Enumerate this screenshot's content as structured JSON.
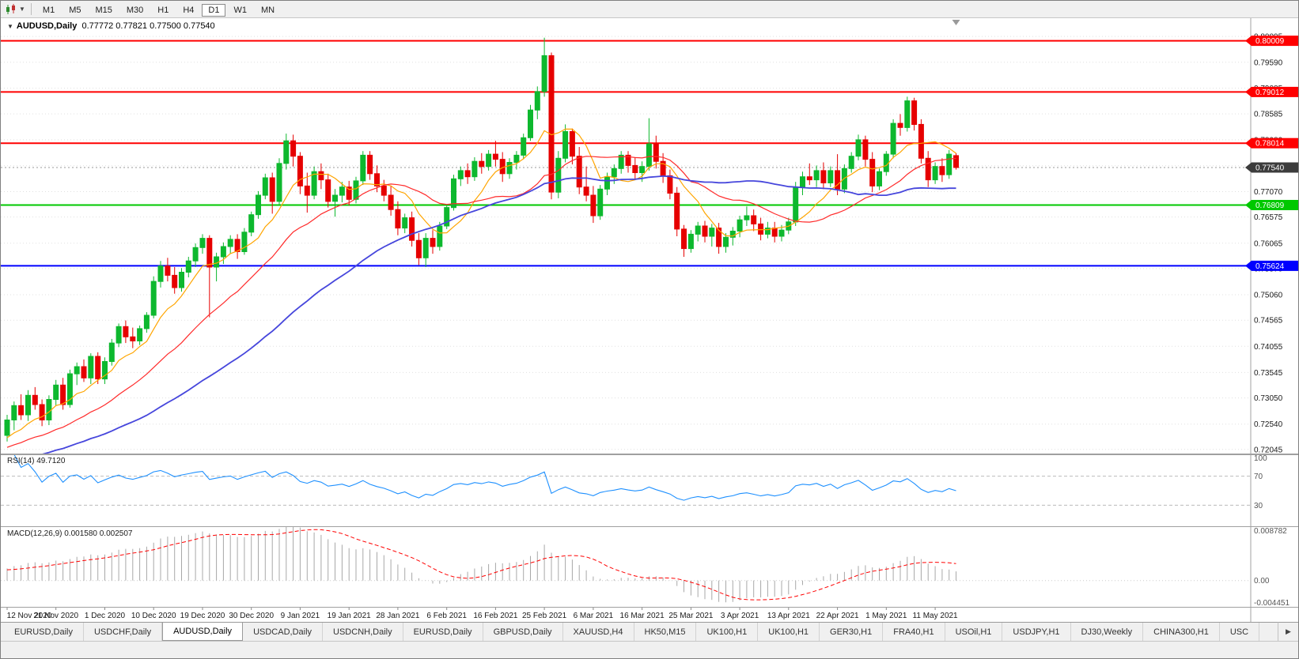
{
  "toolbar": {
    "timeframes": [
      "M1",
      "M5",
      "M15",
      "M30",
      "H1",
      "H4",
      "D1",
      "W1",
      "MN"
    ],
    "active": "D1"
  },
  "main_chart": {
    "collapse_icon": "▼",
    "title_symbol": "AUDUSD,Daily",
    "title_ohlc": "0.77772 0.77821 0.77500 0.77540"
  },
  "chart_data": {
    "type": "candlestick",
    "symbol": "AUDUSD",
    "timeframe": "Daily",
    "price_range": {
      "min": 0.7195,
      "max": 0.8045
    },
    "y_ticks": [
      "0.80095",
      "0.79590",
      "0.79085",
      "0.78585",
      "0.78080",
      "0.77575",
      "0.77070",
      "0.76575",
      "0.76065",
      "0.75570",
      "0.75060",
      "0.74565",
      "0.74055",
      "0.73545",
      "0.73050",
      "0.72540",
      "0.72045"
    ],
    "x_labels": [
      "12 Nov 2020",
      "21 Nov 2020",
      "1 Dec 2020",
      "10 Dec 2020",
      "19 Dec 2020",
      "30 Dec 2020",
      "9 Jan 2021",
      "19 Jan 2021",
      "28 Jan 2021",
      "6 Feb 2021",
      "16 Feb 2021",
      "25 Feb 2021",
      "6 Mar 2021",
      "16 Mar 2021",
      "25 Mar 2021",
      "3 Apr 2021",
      "13 Apr 2021",
      "22 Apr 2021",
      "1 May 2021",
      "11 May 2021"
    ],
    "label_every": 7,
    "candles": [
      [
        0.7232,
        0.7272,
        0.722,
        0.7262
      ],
      [
        0.7262,
        0.7298,
        0.7242,
        0.729
      ],
      [
        0.729,
        0.7312,
        0.7262,
        0.7272
      ],
      [
        0.7272,
        0.732,
        0.726,
        0.731
      ],
      [
        0.731,
        0.7326,
        0.7282,
        0.7292
      ],
      [
        0.7292,
        0.7302,
        0.725,
        0.7262
      ],
      [
        0.7262,
        0.731,
        0.7252,
        0.7302
      ],
      [
        0.7302,
        0.734,
        0.729,
        0.733
      ],
      [
        0.733,
        0.7344,
        0.7282,
        0.7292
      ],
      [
        0.7292,
        0.736,
        0.7286,
        0.7352
      ],
      [
        0.7352,
        0.7374,
        0.733,
        0.7366
      ],
      [
        0.7366,
        0.738,
        0.7336,
        0.7344
      ],
      [
        0.7344,
        0.7392,
        0.7332,
        0.7386
      ],
      [
        0.7386,
        0.7394,
        0.7332,
        0.7342
      ],
      [
        0.7342,
        0.7384,
        0.7332,
        0.7376
      ],
      [
        0.7376,
        0.742,
        0.7368,
        0.7412
      ],
      [
        0.7412,
        0.745,
        0.7404,
        0.7444
      ],
      [
        0.7444,
        0.7456,
        0.7412,
        0.7424
      ],
      [
        0.7424,
        0.7442,
        0.7402,
        0.7416
      ],
      [
        0.7416,
        0.7446,
        0.7408,
        0.744
      ],
      [
        0.744,
        0.7472,
        0.7432,
        0.7466
      ],
      [
        0.7466,
        0.7542,
        0.746,
        0.7532
      ],
      [
        0.7532,
        0.7572,
        0.752,
        0.7562
      ],
      [
        0.7562,
        0.7578,
        0.7532,
        0.7544
      ],
      [
        0.7544,
        0.756,
        0.7508,
        0.752
      ],
      [
        0.752,
        0.7558,
        0.7512,
        0.755
      ],
      [
        0.755,
        0.758,
        0.754,
        0.7572
      ],
      [
        0.7572,
        0.7606,
        0.756,
        0.7598
      ],
      [
        0.7598,
        0.7624,
        0.7586,
        0.7616
      ],
      [
        0.7616,
        0.7622,
        0.7462,
        0.756
      ],
      [
        0.756,
        0.7588,
        0.7532,
        0.758
      ],
      [
        0.758,
        0.7608,
        0.7566,
        0.76
      ],
      [
        0.76,
        0.7622,
        0.7586,
        0.7614
      ],
      [
        0.7614,
        0.7624,
        0.7576,
        0.759
      ],
      [
        0.759,
        0.7636,
        0.7584,
        0.7628
      ],
      [
        0.7628,
        0.7668,
        0.762,
        0.7662
      ],
      [
        0.7662,
        0.7708,
        0.7654,
        0.77
      ],
      [
        0.77,
        0.7742,
        0.7692,
        0.7734
      ],
      [
        0.7734,
        0.7744,
        0.7664,
        0.7688
      ],
      [
        0.7688,
        0.7772,
        0.7682,
        0.7762
      ],
      [
        0.7762,
        0.782,
        0.775,
        0.7806
      ],
      [
        0.7806,
        0.7818,
        0.7756,
        0.7776
      ],
      [
        0.7776,
        0.7784,
        0.7702,
        0.7718
      ],
      [
        0.7718,
        0.7744,
        0.7666,
        0.77
      ],
      [
        0.77,
        0.7756,
        0.7692,
        0.7746
      ],
      [
        0.7746,
        0.7762,
        0.7712,
        0.773
      ],
      [
        0.773,
        0.7742,
        0.7676,
        0.7688
      ],
      [
        0.7688,
        0.7712,
        0.7658,
        0.77
      ],
      [
        0.77,
        0.7726,
        0.7686,
        0.7716
      ],
      [
        0.7716,
        0.7728,
        0.768,
        0.7692
      ],
      [
        0.7692,
        0.7736,
        0.7684,
        0.7728
      ],
      [
        0.7728,
        0.7786,
        0.772,
        0.7778
      ],
      [
        0.7778,
        0.7786,
        0.773,
        0.7742
      ],
      [
        0.7742,
        0.7758,
        0.7706,
        0.7718
      ],
      [
        0.7718,
        0.773,
        0.7688,
        0.77
      ],
      [
        0.77,
        0.7718,
        0.766,
        0.7672
      ],
      [
        0.7672,
        0.7688,
        0.7622,
        0.7636
      ],
      [
        0.7636,
        0.7664,
        0.7626,
        0.7656
      ],
      [
        0.7656,
        0.7668,
        0.76,
        0.7612
      ],
      [
        0.7612,
        0.7626,
        0.7564,
        0.7578
      ],
      [
        0.7578,
        0.7626,
        0.756,
        0.7616
      ],
      [
        0.7616,
        0.7632,
        0.7586,
        0.76
      ],
      [
        0.76,
        0.7648,
        0.7592,
        0.764
      ],
      [
        0.764,
        0.7682,
        0.7634,
        0.7676
      ],
      [
        0.7676,
        0.774,
        0.767,
        0.7732
      ],
      [
        0.7732,
        0.7756,
        0.7718,
        0.7748
      ],
      [
        0.7748,
        0.7762,
        0.7722,
        0.7736
      ],
      [
        0.7736,
        0.7774,
        0.7728,
        0.7766
      ],
      [
        0.7766,
        0.7782,
        0.7742,
        0.7756
      ],
      [
        0.7756,
        0.7788,
        0.7748,
        0.778
      ],
      [
        0.778,
        0.7806,
        0.7756,
        0.777
      ],
      [
        0.777,
        0.7784,
        0.7726,
        0.7742
      ],
      [
        0.7742,
        0.7772,
        0.7732,
        0.7764
      ],
      [
        0.7764,
        0.7786,
        0.775,
        0.7778
      ],
      [
        0.7778,
        0.782,
        0.777,
        0.7812
      ],
      [
        0.7812,
        0.7876,
        0.7806,
        0.7866
      ],
      [
        0.7866,
        0.7912,
        0.7848,
        0.7902
      ],
      [
        0.7902,
        0.8007,
        0.7892,
        0.7972
      ],
      [
        0.7972,
        0.7978,
        0.7692,
        0.7706
      ],
      [
        0.7706,
        0.7786,
        0.7694,
        0.7772
      ],
      [
        0.7772,
        0.7838,
        0.7764,
        0.7824
      ],
      [
        0.7824,
        0.783,
        0.776,
        0.7776
      ],
      [
        0.7776,
        0.7794,
        0.7702,
        0.7716
      ],
      [
        0.7716,
        0.7756,
        0.7688,
        0.77
      ],
      [
        0.77,
        0.7718,
        0.7646,
        0.766
      ],
      [
        0.766,
        0.772,
        0.7652,
        0.7712
      ],
      [
        0.7712,
        0.7744,
        0.77,
        0.7736
      ],
      [
        0.7736,
        0.776,
        0.7722,
        0.7752
      ],
      [
        0.7752,
        0.7786,
        0.7742,
        0.7778
      ],
      [
        0.7778,
        0.7786,
        0.7744,
        0.7758
      ],
      [
        0.7758,
        0.7774,
        0.773,
        0.7744
      ],
      [
        0.7744,
        0.7766,
        0.7726,
        0.7756
      ],
      [
        0.7756,
        0.785,
        0.7748,
        0.78
      ],
      [
        0.78,
        0.7816,
        0.7752,
        0.7766
      ],
      [
        0.7766,
        0.7782,
        0.7724,
        0.7738
      ],
      [
        0.7738,
        0.775,
        0.7692,
        0.7704
      ],
      [
        0.7704,
        0.7716,
        0.762,
        0.7634
      ],
      [
        0.7634,
        0.7642,
        0.758,
        0.7596
      ],
      [
        0.7596,
        0.7632,
        0.7588,
        0.7624
      ],
      [
        0.7624,
        0.7648,
        0.761,
        0.764
      ],
      [
        0.764,
        0.765,
        0.7608,
        0.762
      ],
      [
        0.762,
        0.7644,
        0.76,
        0.7636
      ],
      [
        0.7636,
        0.7646,
        0.7586,
        0.76
      ],
      [
        0.76,
        0.7626,
        0.7588,
        0.7618
      ],
      [
        0.7618,
        0.7638,
        0.7602,
        0.763
      ],
      [
        0.763,
        0.766,
        0.7618,
        0.7652
      ],
      [
        0.7652,
        0.7678,
        0.764,
        0.766
      ],
      [
        0.766,
        0.7672,
        0.763,
        0.7644
      ],
      [
        0.7644,
        0.7656,
        0.7612,
        0.7624
      ],
      [
        0.7624,
        0.7648,
        0.7616,
        0.7636
      ],
      [
        0.7636,
        0.7648,
        0.7608,
        0.762
      ],
      [
        0.762,
        0.7642,
        0.761,
        0.7632
      ],
      [
        0.7632,
        0.7656,
        0.7624,
        0.7648
      ],
      [
        0.7648,
        0.7726,
        0.764,
        0.7716
      ],
      [
        0.7716,
        0.7746,
        0.77,
        0.7736
      ],
      [
        0.7736,
        0.7762,
        0.772,
        0.773
      ],
      [
        0.773,
        0.7758,
        0.7716,
        0.7748
      ],
      [
        0.7748,
        0.7764,
        0.7712,
        0.7724
      ],
      [
        0.7724,
        0.7756,
        0.7716,
        0.7748
      ],
      [
        0.7748,
        0.778,
        0.77,
        0.7712
      ],
      [
        0.7712,
        0.776,
        0.7704,
        0.7752
      ],
      [
        0.7752,
        0.7784,
        0.7744,
        0.7776
      ],
      [
        0.7776,
        0.7818,
        0.7768,
        0.7808
      ],
      [
        0.7808,
        0.7816,
        0.7756,
        0.777
      ],
      [
        0.777,
        0.7784,
        0.7706,
        0.7718
      ],
      [
        0.7718,
        0.7752,
        0.771,
        0.7746
      ],
      [
        0.7746,
        0.7786,
        0.7738,
        0.778
      ],
      [
        0.778,
        0.7848,
        0.7772,
        0.784
      ],
      [
        0.784,
        0.7858,
        0.7816,
        0.7832
      ],
      [
        0.7832,
        0.7892,
        0.7824,
        0.7884
      ],
      [
        0.7884,
        0.789,
        0.7826,
        0.7838
      ],
      [
        0.7838,
        0.7848,
        0.7762,
        0.7772
      ],
      [
        0.7772,
        0.7786,
        0.7716,
        0.773
      ],
      [
        0.773,
        0.7764,
        0.7722,
        0.7756
      ],
      [
        0.7756,
        0.7772,
        0.7726,
        0.774
      ],
      [
        0.774,
        0.7788,
        0.7732,
        0.778
      ],
      [
        0.77772,
        0.77821,
        0.775,
        0.7754
      ]
    ],
    "levels": [
      {
        "price": 0.80009,
        "label": "0.80009",
        "color": "#ff0000",
        "width": 2
      },
      {
        "price": 0.79012,
        "label": "0.79012",
        "color": "#ff0000",
        "width": 2
      },
      {
        "price": 0.78014,
        "label": "0.78014",
        "color": "#ff0000",
        "width": 2
      },
      {
        "price": 0.76809,
        "label": "0.76809",
        "color": "#00c800",
        "width": 2
      },
      {
        "price": 0.75624,
        "label": "0.75624",
        "color": "#0000ff",
        "width": 2
      }
    ],
    "current_price": {
      "value": 0.7754,
      "label": "0.77540",
      "box_color": "#3c3c3c"
    },
    "moving_averages": [
      {
        "period": 8,
        "color": "#ffa500",
        "width": 1.2
      },
      {
        "period": 21,
        "color": "#ff2a2a",
        "width": 1.2
      },
      {
        "period": 45,
        "color": "#4646dc",
        "width": 1.8
      }
    ],
    "prehistory": {
      "start": 0.708,
      "end": 0.723,
      "count": 60
    },
    "colors": {
      "bull": "#0db82e",
      "bear": "#e60000",
      "grid": "#e0e0e0",
      "axis_text": "#1a1a1a",
      "background": "#ffffff"
    },
    "rsi": {
      "label": "RSI(14)",
      "value": "49.7120",
      "period": 14,
      "axis_labels": [
        "100",
        "70",
        "30"
      ],
      "level_high": 70,
      "level_low": 30,
      "range": [
        0,
        100
      ],
      "line_color": "#1e90ff"
    },
    "macd": {
      "label": "MACD(12,26,9)",
      "values": "0.001580 0.002507",
      "fast": 12,
      "slow": 26,
      "signal": 9,
      "axis_labels": [
        "0.008782",
        "0.00",
        "-0.004451"
      ],
      "range": [
        -0.004451,
        0.008782
      ],
      "hist_color": "#a8a8a8",
      "signal_color": "#ff0000"
    }
  },
  "tabs": {
    "items": [
      "EURUSD,Daily",
      "USDCHF,Daily",
      "AUDUSD,Daily",
      "USDCAD,Daily",
      "USDCNH,Daily",
      "EURUSD,Daily",
      "GBPUSD,Daily",
      "XAUUSD,H4",
      "HK50,M15",
      "UK100,H1",
      "UK100,H1",
      "GER30,H1",
      "FRA40,H1",
      "USOil,H1",
      "USDJPY,H1",
      "DJ30,Weekly",
      "CHINA300,H1",
      "USC"
    ],
    "active_index": 2,
    "scroll_right_icon": "▶"
  }
}
